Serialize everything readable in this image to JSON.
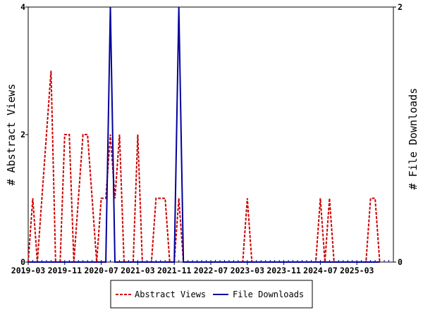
{
  "chart_data": {
    "type": "line",
    "title": "",
    "x_tick_labels": [
      "2019-03",
      "2019-11",
      "2020-07",
      "2021-03",
      "2021-11",
      "2022-07",
      "2023-03",
      "2023-11",
      "2024-07",
      "2025-03"
    ],
    "xlim": [
      "2019-03",
      "2025-11"
    ],
    "y_left": {
      "label": "# Abstract Views",
      "ylim": [
        0,
        4
      ],
      "ticks": [
        0,
        2,
        4
      ]
    },
    "y_right": {
      "label": "# File Downloads",
      "ylim": [
        0,
        2
      ],
      "ticks": [
        0,
        2
      ]
    },
    "series": [
      {
        "name": "Abstract Views",
        "axis": "left",
        "color": "#cc0000",
        "style": "dashed",
        "points": [
          [
            "2019-03",
            0
          ],
          [
            "2019-04",
            1
          ],
          [
            "2019-05",
            0
          ],
          [
            "2019-06",
            1
          ],
          [
            "2019-07",
            2
          ],
          [
            "2019-08",
            3
          ],
          [
            "2019-09",
            0
          ],
          [
            "2019-10",
            0
          ],
          [
            "2019-11",
            2
          ],
          [
            "2019-12",
            2
          ],
          [
            "2020-01",
            0
          ],
          [
            "2020-02",
            1
          ],
          [
            "2020-03",
            2
          ],
          [
            "2020-04",
            2
          ],
          [
            "2020-05",
            1
          ],
          [
            "2020-06",
            0
          ],
          [
            "2020-07",
            1
          ],
          [
            "2020-08",
            1
          ],
          [
            "2020-09",
            2
          ],
          [
            "2020-10",
            1
          ],
          [
            "2020-11",
            2
          ],
          [
            "2020-12",
            0
          ],
          [
            "2021-01",
            0
          ],
          [
            "2021-02",
            0
          ],
          [
            "2021-03",
            2
          ],
          [
            "2021-04",
            0
          ],
          [
            "2021-05",
            0
          ],
          [
            "2021-06",
            0
          ],
          [
            "2021-07",
            1
          ],
          [
            "2021-08",
            1
          ],
          [
            "2021-09",
            1
          ],
          [
            "2021-10",
            0
          ],
          [
            "2021-11",
            0
          ],
          [
            "2021-12",
            1
          ],
          [
            "2022-01",
            0
          ],
          [
            "2022-02",
            0
          ],
          [
            "2022-03",
            0
          ],
          [
            "2022-04",
            0
          ],
          [
            "2022-05",
            0
          ],
          [
            "2022-06",
            0
          ],
          [
            "2022-07",
            0
          ],
          [
            "2022-08",
            0
          ],
          [
            "2022-09",
            0
          ],
          [
            "2022-10",
            0
          ],
          [
            "2022-11",
            0
          ],
          [
            "2022-12",
            0
          ],
          [
            "2023-01",
            0
          ],
          [
            "2023-02",
            0
          ],
          [
            "2023-03",
            1
          ],
          [
            "2023-04",
            0
          ],
          [
            "2023-05",
            0
          ],
          [
            "2023-06",
            0
          ],
          [
            "2023-07",
            0
          ],
          [
            "2023-08",
            0
          ],
          [
            "2023-09",
            0
          ],
          [
            "2023-10",
            0
          ],
          [
            "2023-11",
            0
          ],
          [
            "2023-12",
            0
          ],
          [
            "2024-01",
            0
          ],
          [
            "2024-02",
            0
          ],
          [
            "2024-03",
            0
          ],
          [
            "2024-04",
            0
          ],
          [
            "2024-05",
            0
          ],
          [
            "2024-06",
            0
          ],
          [
            "2024-07",
            1
          ],
          [
            "2024-08",
            0
          ],
          [
            "2024-09",
            1
          ],
          [
            "2024-10",
            0
          ],
          [
            "2024-11",
            0
          ],
          [
            "2024-12",
            0
          ],
          [
            "2025-01",
            0
          ],
          [
            "2025-02",
            0
          ],
          [
            "2025-03",
            0
          ],
          [
            "2025-04",
            0
          ],
          [
            "2025-05",
            0
          ],
          [
            "2025-06",
            1
          ],
          [
            "2025-07",
            1
          ],
          [
            "2025-08",
            0
          ]
        ]
      },
      {
        "name": "File Downloads",
        "axis": "right",
        "color": "#00009c",
        "style": "solid",
        "points": [
          [
            "2019-03",
            0
          ],
          [
            "2020-08",
            0
          ],
          [
            "2020-09",
            2
          ],
          [
            "2020-10",
            0
          ],
          [
            "2021-10",
            0
          ],
          [
            "2021-11",
            0
          ],
          [
            "2021-12",
            2
          ],
          [
            "2022-01",
            0
          ],
          [
            "2025-08",
            0
          ]
        ]
      }
    ],
    "legend": {
      "position": "bottom"
    },
    "grid": false
  }
}
